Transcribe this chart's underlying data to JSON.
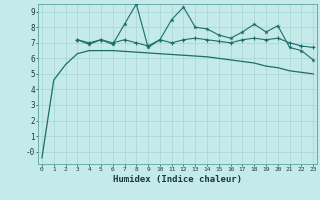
{
  "xlabel": "Humidex (Indice chaleur)",
  "bg_color": "#c5eaea",
  "line_color": "#1a6e6a",
  "grid_color": "#a8d5d5",
  "xlim": [
    -0.3,
    23.3
  ],
  "ylim": [
    -0.8,
    9.5
  ],
  "yticks": [
    0,
    1,
    2,
    3,
    4,
    5,
    6,
    7,
    8,
    9
  ],
  "ytick_labels": [
    "-0",
    "1",
    "2",
    "3",
    "4",
    "5",
    "6",
    "7",
    "8",
    "9"
  ],
  "xticks": [
    0,
    1,
    2,
    3,
    4,
    5,
    6,
    7,
    8,
    9,
    10,
    11,
    12,
    13,
    14,
    15,
    16,
    17,
    18,
    19,
    20,
    21,
    22,
    23
  ],
  "line1_x": [
    0,
    1,
    2,
    3,
    4,
    5,
    6,
    7,
    8,
    9,
    10,
    11,
    12,
    13,
    14,
    15,
    16,
    17,
    18,
    19,
    20,
    21,
    22,
    23
  ],
  "line1_y": [
    -0.4,
    4.6,
    5.6,
    6.3,
    6.5,
    6.5,
    6.5,
    6.45,
    6.4,
    6.35,
    6.3,
    6.25,
    6.2,
    6.15,
    6.1,
    6.0,
    5.9,
    5.8,
    5.7,
    5.5,
    5.4,
    5.2,
    5.1,
    5.0
  ],
  "line2_x": [
    3,
    4,
    5,
    6,
    7,
    8,
    9,
    10,
    11,
    12,
    13,
    14,
    15,
    16,
    17,
    18,
    19,
    20,
    21,
    22,
    23
  ],
  "line2_y": [
    7.2,
    6.9,
    7.2,
    6.9,
    8.2,
    9.5,
    6.7,
    7.2,
    8.5,
    9.3,
    8.0,
    7.9,
    7.5,
    7.3,
    7.7,
    8.2,
    7.7,
    8.1,
    6.7,
    6.5,
    5.9
  ],
  "line3_x": [
    3,
    4,
    5,
    6,
    7,
    8,
    9,
    10,
    11,
    12,
    13,
    14,
    15,
    16,
    17,
    18,
    19,
    20,
    21,
    22,
    23
  ],
  "line3_y": [
    7.2,
    7.0,
    7.2,
    7.0,
    7.2,
    7.0,
    6.8,
    7.2,
    7.0,
    7.2,
    7.3,
    7.2,
    7.1,
    7.0,
    7.2,
    7.3,
    7.2,
    7.3,
    7.0,
    6.8,
    6.7
  ]
}
